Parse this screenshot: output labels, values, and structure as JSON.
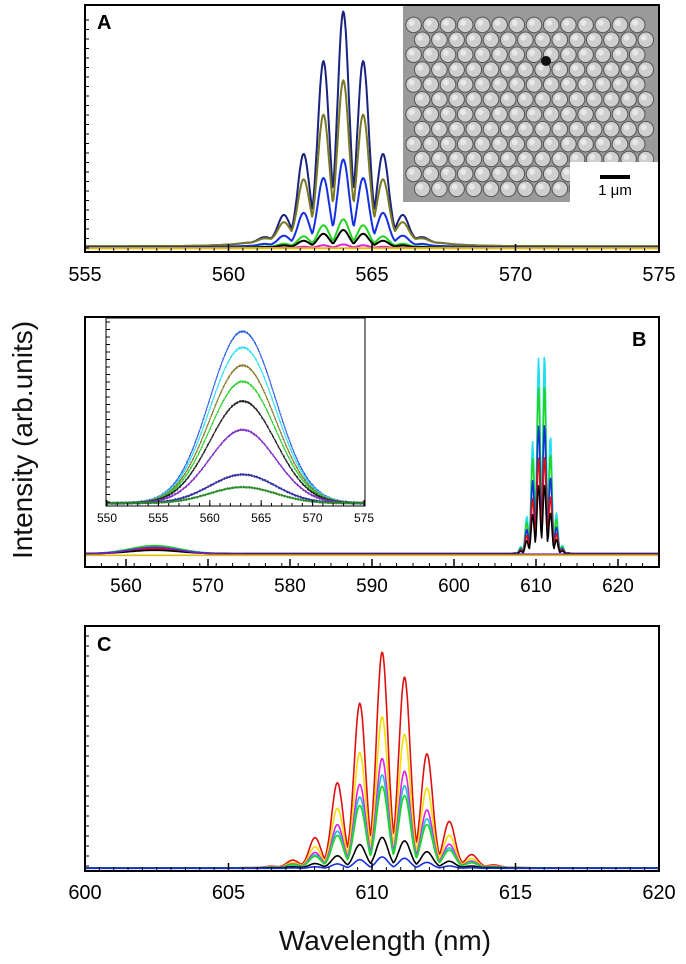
{
  "figure": {
    "ylabel": "Intensity (arb.units)",
    "xlabel": "Wavelength (nm)"
  },
  "chart_data": [
    {
      "id": "A",
      "panel_label": "A",
      "type": "line",
      "title": "",
      "xlim": [
        555,
        575
      ],
      "ylim": [
        0,
        1
      ],
      "x_ticks": [
        555,
        560,
        565,
        570,
        575
      ],
      "x_tick_labels": [
        "555",
        "560",
        "565",
        "570",
        "575"
      ],
      "xlabel": "Wavelength (nm)",
      "ylabel": "Intensity (arb.units)",
      "series": [
        {
          "name": "navy",
          "color": "#1a237e",
          "base": 0.012,
          "fringe_amp": 0.93,
          "env_center": 564.0,
          "env_sigma": 1.0,
          "fringe_period": 0.72,
          "fringe_phase": 564.0,
          "fringe_width": 0.2,
          "wing_amp": 0.06,
          "wing_center": 564.0,
          "wing_sigma": 1.9
        },
        {
          "name": "olive",
          "color": "#7a7a24",
          "base": 0.012,
          "fringe_amp": 0.64,
          "env_center": 564.0,
          "env_sigma": 1.0,
          "fringe_period": 0.72,
          "fringe_phase": 564.0,
          "fringe_width": 0.2,
          "wing_amp": 0.06,
          "wing_center": 564.0,
          "wing_sigma": 1.9
        },
        {
          "name": "blue",
          "color": "#1530e0",
          "base": 0.008,
          "fringe_amp": 0.35,
          "env_center": 564.0,
          "env_sigma": 1.0,
          "fringe_period": 0.72,
          "fringe_phase": 564.0,
          "fringe_width": 0.2,
          "wing_amp": 0.02,
          "wing_center": 564.0,
          "wing_sigma": 1.9
        },
        {
          "name": "green",
          "color": "#22d422",
          "base": 0.005,
          "fringe_amp": 0.11,
          "env_center": 564.0,
          "env_sigma": 1.0,
          "fringe_period": 0.72,
          "fringe_phase": 564.0,
          "fringe_width": 0.2,
          "wing_amp": 0.01,
          "wing_center": 564.0,
          "wing_sigma": 1.9
        },
        {
          "name": "black",
          "color": "#000000",
          "base": 0.005,
          "fringe_amp": 0.07,
          "env_center": 564.0,
          "env_sigma": 1.0,
          "fringe_period": 0.72,
          "fringe_phase": 564.0,
          "fringe_width": 0.2,
          "wing_amp": 0.005,
          "wing_center": 564.0,
          "wing_sigma": 1.9
        },
        {
          "name": "magenta",
          "color": "#e020e0",
          "base": 0.004,
          "fringe_amp": 0.015,
          "env_center": 564.0,
          "env_sigma": 1.0,
          "fringe_period": 0.72,
          "fringe_phase": 564.0,
          "fringe_width": 0.2,
          "wing_amp": 0.0,
          "wing_center": 564.0,
          "wing_sigma": 1.9
        },
        {
          "name": "yellow",
          "color": "#e0c000",
          "base": 0.003,
          "fringe_amp": 0.0,
          "env_center": 564.0,
          "env_sigma": 1.0,
          "fringe_period": 0.72,
          "fringe_phase": 564.0,
          "fringe_width": 0.2,
          "wing_amp": 0.0,
          "wing_center": 564.0,
          "wing_sigma": 1.9
        }
      ],
      "inset": {
        "kind": "SEM micrograph",
        "scale_bar_label": "1 μm"
      }
    },
    {
      "id": "B",
      "panel_label": "B",
      "type": "line",
      "title": "",
      "xlim": [
        555,
        625
      ],
      "ylim": [
        0,
        1
      ],
      "x_ticks": [
        560,
        570,
        580,
        590,
        600,
        610,
        620
      ],
      "x_tick_labels": [
        "560",
        "570",
        "580",
        "590",
        "600",
        "610",
        "620"
      ],
      "xlabel": "Wavelength (nm)",
      "ylabel": "Intensity (arb.units)",
      "series": [
        {
          "name": "cyan",
          "color": "#20e0f0",
          "base": 0.01,
          "fringe_amp": 0.92,
          "env_center": 610.7,
          "env_sigma": 1.0,
          "fringe_period": 0.75,
          "fringe_phase": 610.3,
          "fringe_width": 0.2,
          "wing_amp": 0.035,
          "wing_center": 563.5,
          "wing_sigma": 3.0
        },
        {
          "name": "green",
          "color": "#22d422",
          "base": 0.01,
          "fringe_amp": 0.78,
          "env_center": 610.7,
          "env_sigma": 1.0,
          "fringe_period": 0.75,
          "fringe_phase": 610.3,
          "fringe_width": 0.2,
          "wing_amp": 0.035,
          "wing_center": 563.5,
          "wing_sigma": 3.0
        },
        {
          "name": "blue",
          "color": "#1530e0",
          "base": 0.01,
          "fringe_amp": 0.6,
          "env_center": 610.7,
          "env_sigma": 1.0,
          "fringe_period": 0.75,
          "fringe_phase": 610.3,
          "fringe_width": 0.2,
          "wing_amp": 0.025,
          "wing_center": 563.5,
          "wing_sigma": 3.0
        },
        {
          "name": "red",
          "color": "#e01010",
          "base": 0.01,
          "fringe_amp": 0.45,
          "env_center": 610.7,
          "env_sigma": 1.0,
          "fringe_period": 0.75,
          "fringe_phase": 610.3,
          "fringe_width": 0.2,
          "wing_amp": 0.02,
          "wing_center": 563.5,
          "wing_sigma": 3.0
        },
        {
          "name": "black",
          "color": "#000000",
          "base": 0.01,
          "fringe_amp": 0.32,
          "env_center": 610.7,
          "env_sigma": 1.0,
          "fringe_period": 0.75,
          "fringe_phase": 610.3,
          "fringe_width": 0.2,
          "wing_amp": 0.015,
          "wing_center": 563.5,
          "wing_sigma": 3.0
        },
        {
          "name": "purple",
          "color": "#7a1ad0",
          "base": 0.008,
          "fringe_amp": 0.0,
          "env_center": 610.7,
          "env_sigma": 1.0,
          "fringe_period": 0.75,
          "fringe_phase": 610.3,
          "fringe_width": 0.2,
          "wing_amp": 0.03,
          "wing_center": 563.5,
          "wing_sigma": 3.0
        },
        {
          "name": "yellow",
          "color": "#e0c000",
          "base": 0.003,
          "fringe_amp": 0.0,
          "env_center": 610.7,
          "env_sigma": 1.0,
          "fringe_period": 0.75,
          "fringe_phase": 610.3,
          "fringe_width": 0.2,
          "wing_amp": 0.0,
          "wing_center": 563.5,
          "wing_sigma": 3.0
        }
      ],
      "inset": {
        "xlim": [
          550,
          575
        ],
        "ylim": [
          0,
          1
        ],
        "x_ticks": [
          550,
          555,
          560,
          565,
          570,
          575
        ],
        "x_tick_labels": [
          "550",
          "555",
          "560",
          "565",
          "570",
          "575"
        ],
        "series": [
          {
            "name": "blue",
            "color": "#3060e8",
            "amp": 0.96,
            "center": 563.2,
            "sigma": 3.2,
            "base": 0.01
          },
          {
            "name": "cyan",
            "color": "#30e0f0",
            "amp": 0.87,
            "center": 563.2,
            "sigma": 3.2,
            "base": 0.01
          },
          {
            "name": "olive",
            "color": "#8a7a30",
            "amp": 0.77,
            "center": 563.2,
            "sigma": 3.2,
            "base": 0.01
          },
          {
            "name": "green",
            "color": "#30d030",
            "amp": 0.68,
            "center": 563.2,
            "sigma": 3.2,
            "base": 0.01
          },
          {
            "name": "black",
            "color": "#202020",
            "amp": 0.57,
            "center": 563.2,
            "sigma": 3.2,
            "base": 0.01
          },
          {
            "name": "purple",
            "color": "#8030c8",
            "amp": 0.41,
            "center": 563.2,
            "sigma": 3.2,
            "base": 0.01
          },
          {
            "name": "indigo",
            "color": "#3030a0",
            "amp": 0.16,
            "center": 563.2,
            "sigma": 3.2,
            "base": 0.01
          },
          {
            "name": "darkgreen",
            "color": "#2a8a2a",
            "amp": 0.09,
            "center": 563.2,
            "sigma": 3.2,
            "base": 0.01
          }
        ]
      }
    },
    {
      "id": "C",
      "panel_label": "C",
      "type": "line",
      "title": "",
      "xlim": [
        600,
        620
      ],
      "ylim": [
        0,
        1
      ],
      "x_ticks": [
        600,
        605,
        610,
        615,
        620
      ],
      "x_tick_labels": [
        "600",
        "605",
        "610",
        "615",
        "620"
      ],
      "xlabel": "Wavelength (nm)",
      "ylabel": "Intensity (arb.units)",
      "series": [
        {
          "name": "red",
          "color": "#e01010",
          "base": 0.004,
          "fringe_amp": 0.93,
          "env_center": 610.5,
          "env_sigma": 1.25,
          "fringe_period": 0.8,
          "fringe_phase": 610.35,
          "fringe_width": 0.2,
          "wing_amp": 0.02,
          "wing_center": 610.5,
          "wing_sigma": 2.2
        },
        {
          "name": "yellow",
          "color": "#f0e000",
          "base": 0.004,
          "fringe_amp": 0.65,
          "env_center": 610.5,
          "env_sigma": 1.25,
          "fringe_period": 0.8,
          "fringe_phase": 610.35,
          "fringe_width": 0.2,
          "wing_amp": 0.015,
          "wing_center": 610.5,
          "wing_sigma": 2.2
        },
        {
          "name": "magenta",
          "color": "#e020e0",
          "base": 0.004,
          "fringe_amp": 0.47,
          "env_center": 610.5,
          "env_sigma": 1.25,
          "fringe_period": 0.8,
          "fringe_phase": 610.35,
          "fringe_width": 0.2,
          "wing_amp": 0.012,
          "wing_center": 610.5,
          "wing_sigma": 2.2
        },
        {
          "name": "cyan",
          "color": "#20c0e0",
          "base": 0.004,
          "fringe_amp": 0.4,
          "env_center": 610.5,
          "env_sigma": 1.25,
          "fringe_period": 0.8,
          "fringe_phase": 610.35,
          "fringe_width": 0.2,
          "wing_amp": 0.01,
          "wing_center": 610.5,
          "wing_sigma": 2.2
        },
        {
          "name": "green",
          "color": "#22d422",
          "base": 0.004,
          "fringe_amp": 0.35,
          "env_center": 610.5,
          "env_sigma": 1.25,
          "fringe_period": 0.8,
          "fringe_phase": 610.35,
          "fringe_width": 0.2,
          "wing_amp": 0.01,
          "wing_center": 610.5,
          "wing_sigma": 2.2
        },
        {
          "name": "black",
          "color": "#000000",
          "base": 0.004,
          "fringe_amp": 0.13,
          "env_center": 610.5,
          "env_sigma": 1.25,
          "fringe_period": 0.8,
          "fringe_phase": 610.35,
          "fringe_width": 0.2,
          "wing_amp": 0.005,
          "wing_center": 610.5,
          "wing_sigma": 2.2
        },
        {
          "name": "blue",
          "color": "#1530e0",
          "base": 0.003,
          "fringe_amp": 0.05,
          "env_center": 610.5,
          "env_sigma": 1.25,
          "fringe_period": 0.8,
          "fringe_phase": 610.35,
          "fringe_width": 0.2,
          "wing_amp": 0.0,
          "wing_center": 610.5,
          "wing_sigma": 2.2
        }
      ]
    }
  ]
}
